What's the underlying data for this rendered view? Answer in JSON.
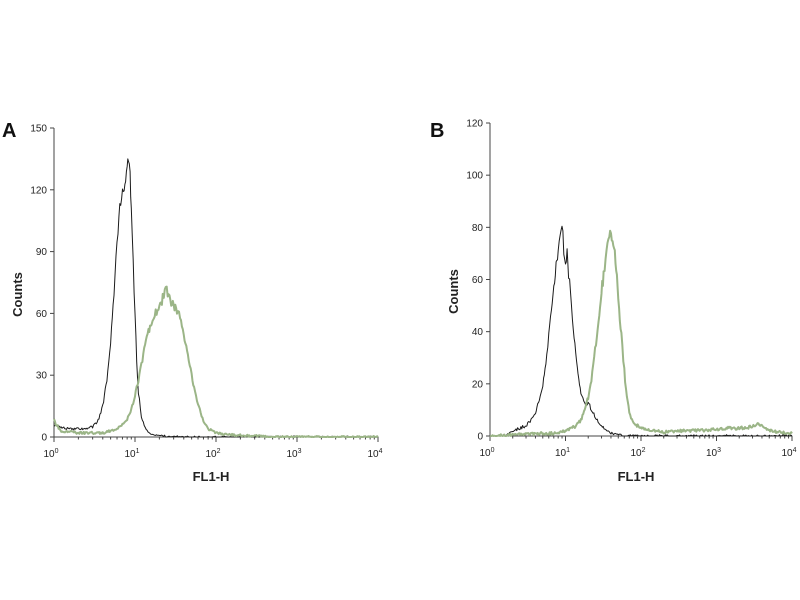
{
  "chart_data": [
    {
      "type": "line",
      "panel_label": "A",
      "xlabel": "FL1-H",
      "ylabel": "Counts",
      "x_scale": "log",
      "xlim": [
        1,
        10000
      ],
      "ylim": [
        0,
        150
      ],
      "x_ticks": [
        {
          "base": "10",
          "exp": "0"
        },
        {
          "base": "10",
          "exp": "1"
        },
        {
          "base": "10",
          "exp": "2"
        },
        {
          "base": "10",
          "exp": "3"
        },
        {
          "base": "10",
          "exp": "4"
        }
      ],
      "y_ticks": [
        "0",
        "30",
        "60",
        "90",
        "120",
        "150"
      ],
      "series": [
        {
          "color": "#1a1a1a",
          "width": 1,
          "points": [
            [
              1,
              6
            ],
            [
              1.5,
              4
            ],
            [
              2,
              4
            ],
            [
              2.5,
              4
            ],
            [
              3,
              5
            ],
            [
              3.5,
              8
            ],
            [
              4,
              15
            ],
            [
              4.5,
              28
            ],
            [
              5,
              45
            ],
            [
              5.5,
              70
            ],
            [
              6,
              95
            ],
            [
              6.5,
              112
            ],
            [
              7,
              118
            ],
            [
              7.5,
              122
            ],
            [
              8,
              130
            ],
            [
              8.3,
              135
            ],
            [
              8.7,
              126
            ],
            [
              9,
              110
            ],
            [
              9.5,
              85
            ],
            [
              10,
              58
            ],
            [
              10.5,
              38
            ],
            [
              11,
              22
            ],
            [
              12,
              10
            ],
            [
              13,
              5
            ],
            [
              14.5,
              2
            ],
            [
              17,
              1
            ],
            [
              22,
              0.5
            ],
            [
              40,
              0
            ],
            [
              100,
              0
            ],
            [
              1000,
              0
            ],
            [
              10000,
              0
            ]
          ]
        },
        {
          "color": "#9bb587",
          "width": 2,
          "points": [
            [
              1,
              8
            ],
            [
              1.2,
              3
            ],
            [
              2,
              2
            ],
            [
              3,
              2
            ],
            [
              4,
              2
            ],
            [
              5,
              3
            ],
            [
              6,
              4
            ],
            [
              7,
              6
            ],
            [
              8,
              9
            ],
            [
              9,
              13
            ],
            [
              10,
              20
            ],
            [
              11,
              27
            ],
            [
              12,
              35
            ],
            [
              13,
              42
            ],
            [
              14,
              48
            ],
            [
              15,
              52
            ],
            [
              16,
              55
            ],
            [
              17,
              58
            ],
            [
              18,
              60
            ],
            [
              20,
              64
            ],
            [
              22,
              67
            ],
            [
              24,
              72
            ],
            [
              26,
              68
            ],
            [
              28,
              66
            ],
            [
              30,
              64
            ],
            [
              33,
              62
            ],
            [
              36,
              57
            ],
            [
              40,
              50
            ],
            [
              45,
              40
            ],
            [
              50,
              30
            ],
            [
              55,
              22
            ],
            [
              60,
              16
            ],
            [
              70,
              8
            ],
            [
              80,
              4
            ],
            [
              100,
              2
            ],
            [
              150,
              1
            ],
            [
              300,
              0.5
            ],
            [
              500,
              0
            ],
            [
              10000,
              0
            ]
          ]
        }
      ]
    },
    {
      "type": "line",
      "panel_label": "B",
      "xlabel": "FL1-H",
      "ylabel": "Counts",
      "x_scale": "log",
      "xlim": [
        1,
        10000
      ],
      "ylim": [
        0,
        120
      ],
      "x_ticks": [
        {
          "base": "10",
          "exp": "0"
        },
        {
          "base": "10",
          "exp": "1"
        },
        {
          "base": "10",
          "exp": "2"
        },
        {
          "base": "10",
          "exp": "3"
        },
        {
          "base": "10",
          "exp": "4"
        }
      ],
      "y_ticks": [
        "0",
        "20",
        "40",
        "60",
        "80",
        "100",
        "120"
      ],
      "series": [
        {
          "color": "#1a1a1a",
          "width": 1,
          "points": [
            [
              1,
              0
            ],
            [
              1.5,
              0
            ],
            [
              2,
              2
            ],
            [
              2.5,
              3
            ],
            [
              3,
              4
            ],
            [
              3.5,
              6
            ],
            [
              4,
              9
            ],
            [
              4.5,
              14
            ],
            [
              5,
              20
            ],
            [
              5.5,
              28
            ],
            [
              6,
              38
            ],
            [
              6.5,
              48
            ],
            [
              7,
              58
            ],
            [
              7.5,
              65
            ],
            [
              8,
              70
            ],
            [
              8.5,
              76
            ],
            [
              9,
              80
            ],
            [
              9.5,
              72
            ],
            [
              10,
              68
            ],
            [
              10.5,
              70
            ],
            [
              11,
              62
            ],
            [
              12,
              50
            ],
            [
              13,
              38
            ],
            [
              14,
              28
            ],
            [
              15,
              22
            ],
            [
              16,
              17
            ],
            [
              17,
              14
            ],
            [
              18,
              13
            ],
            [
              19,
              12
            ],
            [
              20,
              13
            ],
            [
              22,
              10
            ],
            [
              25,
              7
            ],
            [
              30,
              4
            ],
            [
              35,
              2
            ],
            [
              40,
              1
            ],
            [
              50,
              0.5
            ],
            [
              60,
              0
            ],
            [
              10000,
              0
            ]
          ]
        },
        {
          "color": "#9bb587",
          "width": 2,
          "points": [
            [
              1,
              0
            ],
            [
              5,
              1
            ],
            [
              8,
              1
            ],
            [
              10,
              2
            ],
            [
              12,
              3
            ],
            [
              14,
              4
            ],
            [
              16,
              6
            ],
            [
              18,
              10
            ],
            [
              20,
              15
            ],
            [
              22,
              22
            ],
            [
              24,
              30
            ],
            [
              26,
              38
            ],
            [
              28,
              46
            ],
            [
              30,
              55
            ],
            [
              32,
              62
            ],
            [
              34,
              68
            ],
            [
              36,
              72
            ],
            [
              38,
              75
            ],
            [
              40,
              78
            ],
            [
              42,
              76
            ],
            [
              44,
              73
            ],
            [
              46,
              68
            ],
            [
              48,
              60
            ],
            [
              50,
              52
            ],
            [
              55,
              38
            ],
            [
              60,
              25
            ],
            [
              65,
              15
            ],
            [
              70,
              9
            ],
            [
              80,
              5
            ],
            [
              100,
              3
            ],
            [
              150,
              2
            ],
            [
              200,
              1.5
            ],
            [
              300,
              2
            ],
            [
              500,
              2
            ],
            [
              1000,
              2.5
            ],
            [
              1500,
              3
            ],
            [
              2000,
              3
            ],
            [
              3000,
              3.5
            ],
            [
              3500,
              5
            ],
            [
              4000,
              4
            ],
            [
              5000,
              2
            ],
            [
              7000,
              1.5
            ],
            [
              10000,
              1
            ]
          ]
        }
      ]
    }
  ]
}
